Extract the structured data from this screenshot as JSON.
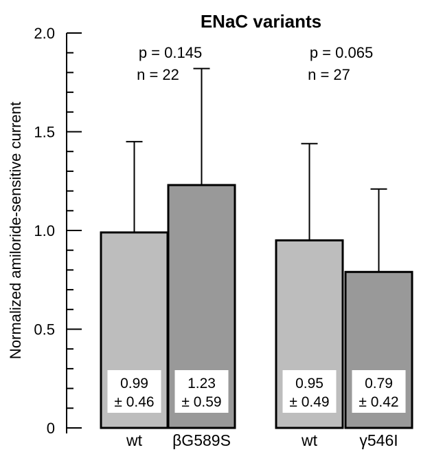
{
  "chart_data": {
    "type": "bar",
    "title": "ENaC variants",
    "ylabel": "Normalized amiloride-sensitive current",
    "xlabel": "",
    "ylim": [
      0,
      2.0
    ],
    "yticks_major": [
      0,
      0.5,
      1.0,
      1.5,
      2.0
    ],
    "ytick_labels": [
      "0",
      "0.5",
      "1.0",
      "1.5",
      "2.0"
    ],
    "yticks_minor": [
      0.1,
      0.2,
      0.3,
      0.4,
      0.6,
      0.7,
      0.8,
      0.9,
      1.1,
      1.2,
      1.3,
      1.4,
      1.6,
      1.7,
      1.8,
      1.9
    ],
    "grid": false,
    "colors": {
      "wt": "#bdbdbd",
      "variant": "#999999",
      "edge": "#000000"
    },
    "groups": [
      {
        "stat_p": "p = 0.145",
        "stat_n": "n = 22",
        "bars": [
          {
            "category": "wt",
            "value": 0.99,
            "error": 0.46,
            "label_mean": "0.99",
            "label_sd": "± 0.46",
            "color_key": "wt"
          },
          {
            "category": "βG589S",
            "value": 1.23,
            "error": 0.59,
            "label_mean": "1.23",
            "label_sd": "± 0.59",
            "color_key": "variant"
          }
        ]
      },
      {
        "stat_p": "p = 0.065",
        "stat_n": "n = 27",
        "bars": [
          {
            "category": "wt",
            "value": 0.95,
            "error": 0.49,
            "label_mean": "0.95",
            "label_sd": "± 0.49",
            "color_key": "wt"
          },
          {
            "category": "γ546I",
            "value": 0.79,
            "error": 0.42,
            "label_mean": "0.79",
            "label_sd": "± 0.42",
            "color_key": "variant"
          }
        ]
      }
    ]
  }
}
